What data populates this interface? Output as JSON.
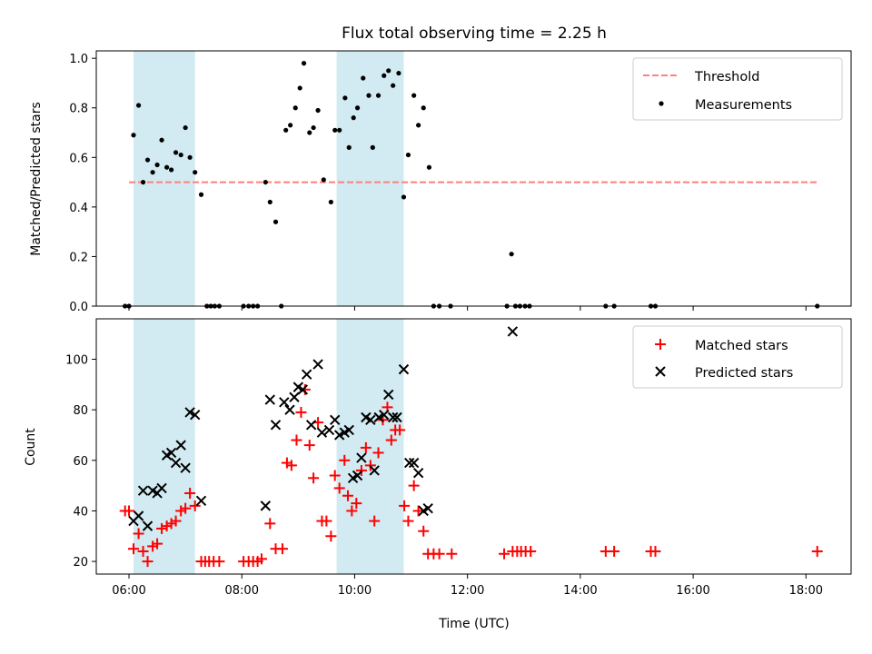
{
  "chart_data": {
    "type": "scatter",
    "title": "Flux total observing time = 2.25 h",
    "xlabel": "Time (UTC)",
    "xlim": [
      5.42,
      18.8
    ],
    "x_ticks": [
      {
        "x": 6,
        "label": "06:00"
      },
      {
        "x": 8,
        "label": "08:00"
      },
      {
        "x": 10,
        "label": "10:00"
      },
      {
        "x": 12,
        "label": "12:00"
      },
      {
        "x": 14,
        "label": "14:00"
      },
      {
        "x": 16,
        "label": "16:00"
      },
      {
        "x": 18,
        "label": "18:00"
      }
    ],
    "observing_windows": [
      [
        6.08,
        7.17
      ],
      [
        9.68,
        10.87
      ]
    ],
    "window_color": "#add8e6",
    "panels": [
      {
        "id": "ratio",
        "ylabel": "Matched/Predicted stars",
        "ylim": [
          0,
          1.03
        ],
        "yticks": [
          0.0,
          0.2,
          0.4,
          0.6,
          0.8,
          1.0
        ],
        "ytick_labels": [
          "0.0",
          "0.2",
          "0.4",
          "0.6",
          "0.8",
          "1.0"
        ],
        "legend_position": "top-right",
        "series": [
          {
            "name": "Threshold",
            "kind": "dashed-line",
            "color": "#ff7f7f",
            "x": [
              6.0,
              18.2
            ],
            "y": [
              0.5,
              0.5
            ]
          },
          {
            "name": "Measurements",
            "kind": "dot",
            "color": "#000000",
            "points": [
              [
                5.93,
                0
              ],
              [
                6.0,
                0
              ],
              [
                6.08,
                0.69
              ],
              [
                6.17,
                0.81
              ],
              [
                6.25,
                0.5
              ],
              [
                6.33,
                0.59
              ],
              [
                6.42,
                0.54
              ],
              [
                6.5,
                0.57
              ],
              [
                6.58,
                0.67
              ],
              [
                6.67,
                0.56
              ],
              [
                6.75,
                0.55
              ],
              [
                6.83,
                0.62
              ],
              [
                6.92,
                0.61
              ],
              [
                7.0,
                0.72
              ],
              [
                7.08,
                0.6
              ],
              [
                7.17,
                0.54
              ],
              [
                7.28,
                0.45
              ],
              [
                7.38,
                0
              ],
              [
                7.45,
                0
              ],
              [
                7.52,
                0
              ],
              [
                7.6,
                0
              ],
              [
                8.03,
                0
              ],
              [
                8.12,
                0
              ],
              [
                8.2,
                0
              ],
              [
                8.28,
                0
              ],
              [
                8.42,
                0.5
              ],
              [
                8.5,
                0.42
              ],
              [
                8.6,
                0.34
              ],
              [
                8.7,
                0
              ],
              [
                8.78,
                0.71
              ],
              [
                8.86,
                0.73
              ],
              [
                8.95,
                0.8
              ],
              [
                9.03,
                0.88
              ],
              [
                9.1,
                0.98
              ],
              [
                9.2,
                0.7
              ],
              [
                9.27,
                0.72
              ],
              [
                9.35,
                0.79
              ],
              [
                9.45,
                0.51
              ],
              [
                9.58,
                0.42
              ],
              [
                9.65,
                0.71
              ],
              [
                9.73,
                0.71
              ],
              [
                9.83,
                0.84
              ],
              [
                9.9,
                0.64
              ],
              [
                9.98,
                0.76
              ],
              [
                10.05,
                0.8
              ],
              [
                10.15,
                0.92
              ],
              [
                10.25,
                0.85
              ],
              [
                10.32,
                0.64
              ],
              [
                10.42,
                0.85
              ],
              [
                10.52,
                0.93
              ],
              [
                10.6,
                0.95
              ],
              [
                10.68,
                0.89
              ],
              [
                10.78,
                0.94
              ],
              [
                10.87,
                0.44
              ],
              [
                10.95,
                0.61
              ],
              [
                11.05,
                0.85
              ],
              [
                11.13,
                0.73
              ],
              [
                11.22,
                0.8
              ],
              [
                11.32,
                0.56
              ],
              [
                11.4,
                0
              ],
              [
                11.5,
                0
              ],
              [
                11.7,
                0
              ],
              [
                12.7,
                0
              ],
              [
                12.78,
                0.21
              ],
              [
                12.85,
                0
              ],
              [
                12.93,
                0
              ],
              [
                13.02,
                0
              ],
              [
                13.1,
                0
              ],
              [
                14.45,
                0
              ],
              [
                14.6,
                0
              ],
              [
                15.25,
                0
              ],
              [
                15.33,
                0
              ],
              [
                18.2,
                0
              ]
            ]
          }
        ]
      },
      {
        "id": "count",
        "ylabel": "Count",
        "ylim": [
          15,
          116
        ],
        "yticks": [
          20,
          40,
          60,
          80,
          100
        ],
        "ytick_labels": [
          "20",
          "40",
          "60",
          "80",
          "100"
        ],
        "legend_position": "top-right",
        "series": [
          {
            "name": "Matched stars",
            "kind": "plus",
            "color": "#ff0000",
            "points": [
              [
                5.93,
                40
              ],
              [
                6.0,
                40
              ],
              [
                6.08,
                25
              ],
              [
                6.17,
                31
              ],
              [
                6.25,
                24
              ],
              [
                6.33,
                20
              ],
              [
                6.42,
                26
              ],
              [
                6.5,
                27
              ],
              [
                6.58,
                33
              ],
              [
                6.67,
                34
              ],
              [
                6.75,
                35
              ],
              [
                6.83,
                36
              ],
              [
                6.92,
                40
              ],
              [
                7.0,
                41
              ],
              [
                7.08,
                47
              ],
              [
                7.17,
                42
              ],
              [
                7.28,
                20
              ],
              [
                7.35,
                20
              ],
              [
                7.42,
                20
              ],
              [
                7.5,
                20
              ],
              [
                7.6,
                20
              ],
              [
                8.03,
                20
              ],
              [
                8.12,
                20
              ],
              [
                8.2,
                20
              ],
              [
                8.28,
                20
              ],
              [
                8.35,
                21
              ],
              [
                8.5,
                35
              ],
              [
                8.6,
                25
              ],
              [
                8.72,
                25
              ],
              [
                8.8,
                59
              ],
              [
                8.88,
                58
              ],
              [
                8.97,
                68
              ],
              [
                9.05,
                79
              ],
              [
                9.12,
                88
              ],
              [
                9.2,
                66
              ],
              [
                9.27,
                53
              ],
              [
                9.35,
                75
              ],
              [
                9.42,
                36
              ],
              [
                9.5,
                36
              ],
              [
                9.58,
                30
              ],
              [
                9.65,
                54
              ],
              [
                9.73,
                49
              ],
              [
                9.82,
                60
              ],
              [
                9.88,
                46
              ],
              [
                9.95,
                40
              ],
              [
                10.03,
                43
              ],
              [
                10.12,
                56
              ],
              [
                10.2,
                65
              ],
              [
                10.28,
                58
              ],
              [
                10.35,
                36
              ],
              [
                10.42,
                63
              ],
              [
                10.5,
                76
              ],
              [
                10.58,
                81
              ],
              [
                10.65,
                68
              ],
              [
                10.72,
                72
              ],
              [
                10.8,
                72
              ],
              [
                10.88,
                42
              ],
              [
                10.95,
                36
              ],
              [
                11.05,
                50
              ],
              [
                11.13,
                40
              ],
              [
                11.22,
                32
              ],
              [
                11.3,
                23
              ],
              [
                11.4,
                23
              ],
              [
                11.5,
                23
              ],
              [
                11.72,
                23
              ],
              [
                12.65,
                23
              ],
              [
                12.8,
                24
              ],
              [
                12.88,
                24
              ],
              [
                12.95,
                24
              ],
              [
                13.03,
                24
              ],
              [
                13.12,
                24
              ],
              [
                14.45,
                24
              ],
              [
                14.6,
                24
              ],
              [
                15.25,
                24
              ],
              [
                15.33,
                24
              ],
              [
                18.2,
                24
              ]
            ]
          },
          {
            "name": "Predicted stars",
            "kind": "x",
            "color": "#000000",
            "points": [
              [
                6.08,
                36
              ],
              [
                6.17,
                38
              ],
              [
                6.25,
                48
              ],
              [
                6.33,
                34
              ],
              [
                6.42,
                48
              ],
              [
                6.5,
                47
              ],
              [
                6.58,
                49
              ],
              [
                6.67,
                62
              ],
              [
                6.75,
                63
              ],
              [
                6.83,
                59
              ],
              [
                6.92,
                66
              ],
              [
                7.0,
                57
              ],
              [
                7.08,
                79
              ],
              [
                7.17,
                78
              ],
              [
                7.28,
                44
              ],
              [
                8.42,
                42
              ],
              [
                8.5,
                84
              ],
              [
                8.6,
                74
              ],
              [
                8.75,
                83
              ],
              [
                8.85,
                80
              ],
              [
                8.93,
                85
              ],
              [
                9.0,
                89
              ],
              [
                9.08,
                88
              ],
              [
                9.15,
                94
              ],
              [
                9.23,
                74
              ],
              [
                9.35,
                98
              ],
              [
                9.42,
                71
              ],
              [
                9.55,
                72
              ],
              [
                9.65,
                76
              ],
              [
                9.73,
                70
              ],
              [
                9.82,
                71
              ],
              [
                9.9,
                72
              ],
              [
                9.97,
                53
              ],
              [
                10.05,
                54
              ],
              [
                10.12,
                61
              ],
              [
                10.2,
                77
              ],
              [
                10.28,
                76
              ],
              [
                10.35,
                56
              ],
              [
                10.43,
                77
              ],
              [
                10.52,
                78
              ],
              [
                10.6,
                86
              ],
              [
                10.68,
                77
              ],
              [
                10.75,
                77
              ],
              [
                10.87,
                96
              ],
              [
                10.97,
                59
              ],
              [
                11.05,
                59
              ],
              [
                11.13,
                55
              ],
              [
                11.22,
                40
              ],
              [
                11.3,
                41
              ],
              [
                12.8,
                111
              ]
            ]
          }
        ]
      }
    ]
  }
}
